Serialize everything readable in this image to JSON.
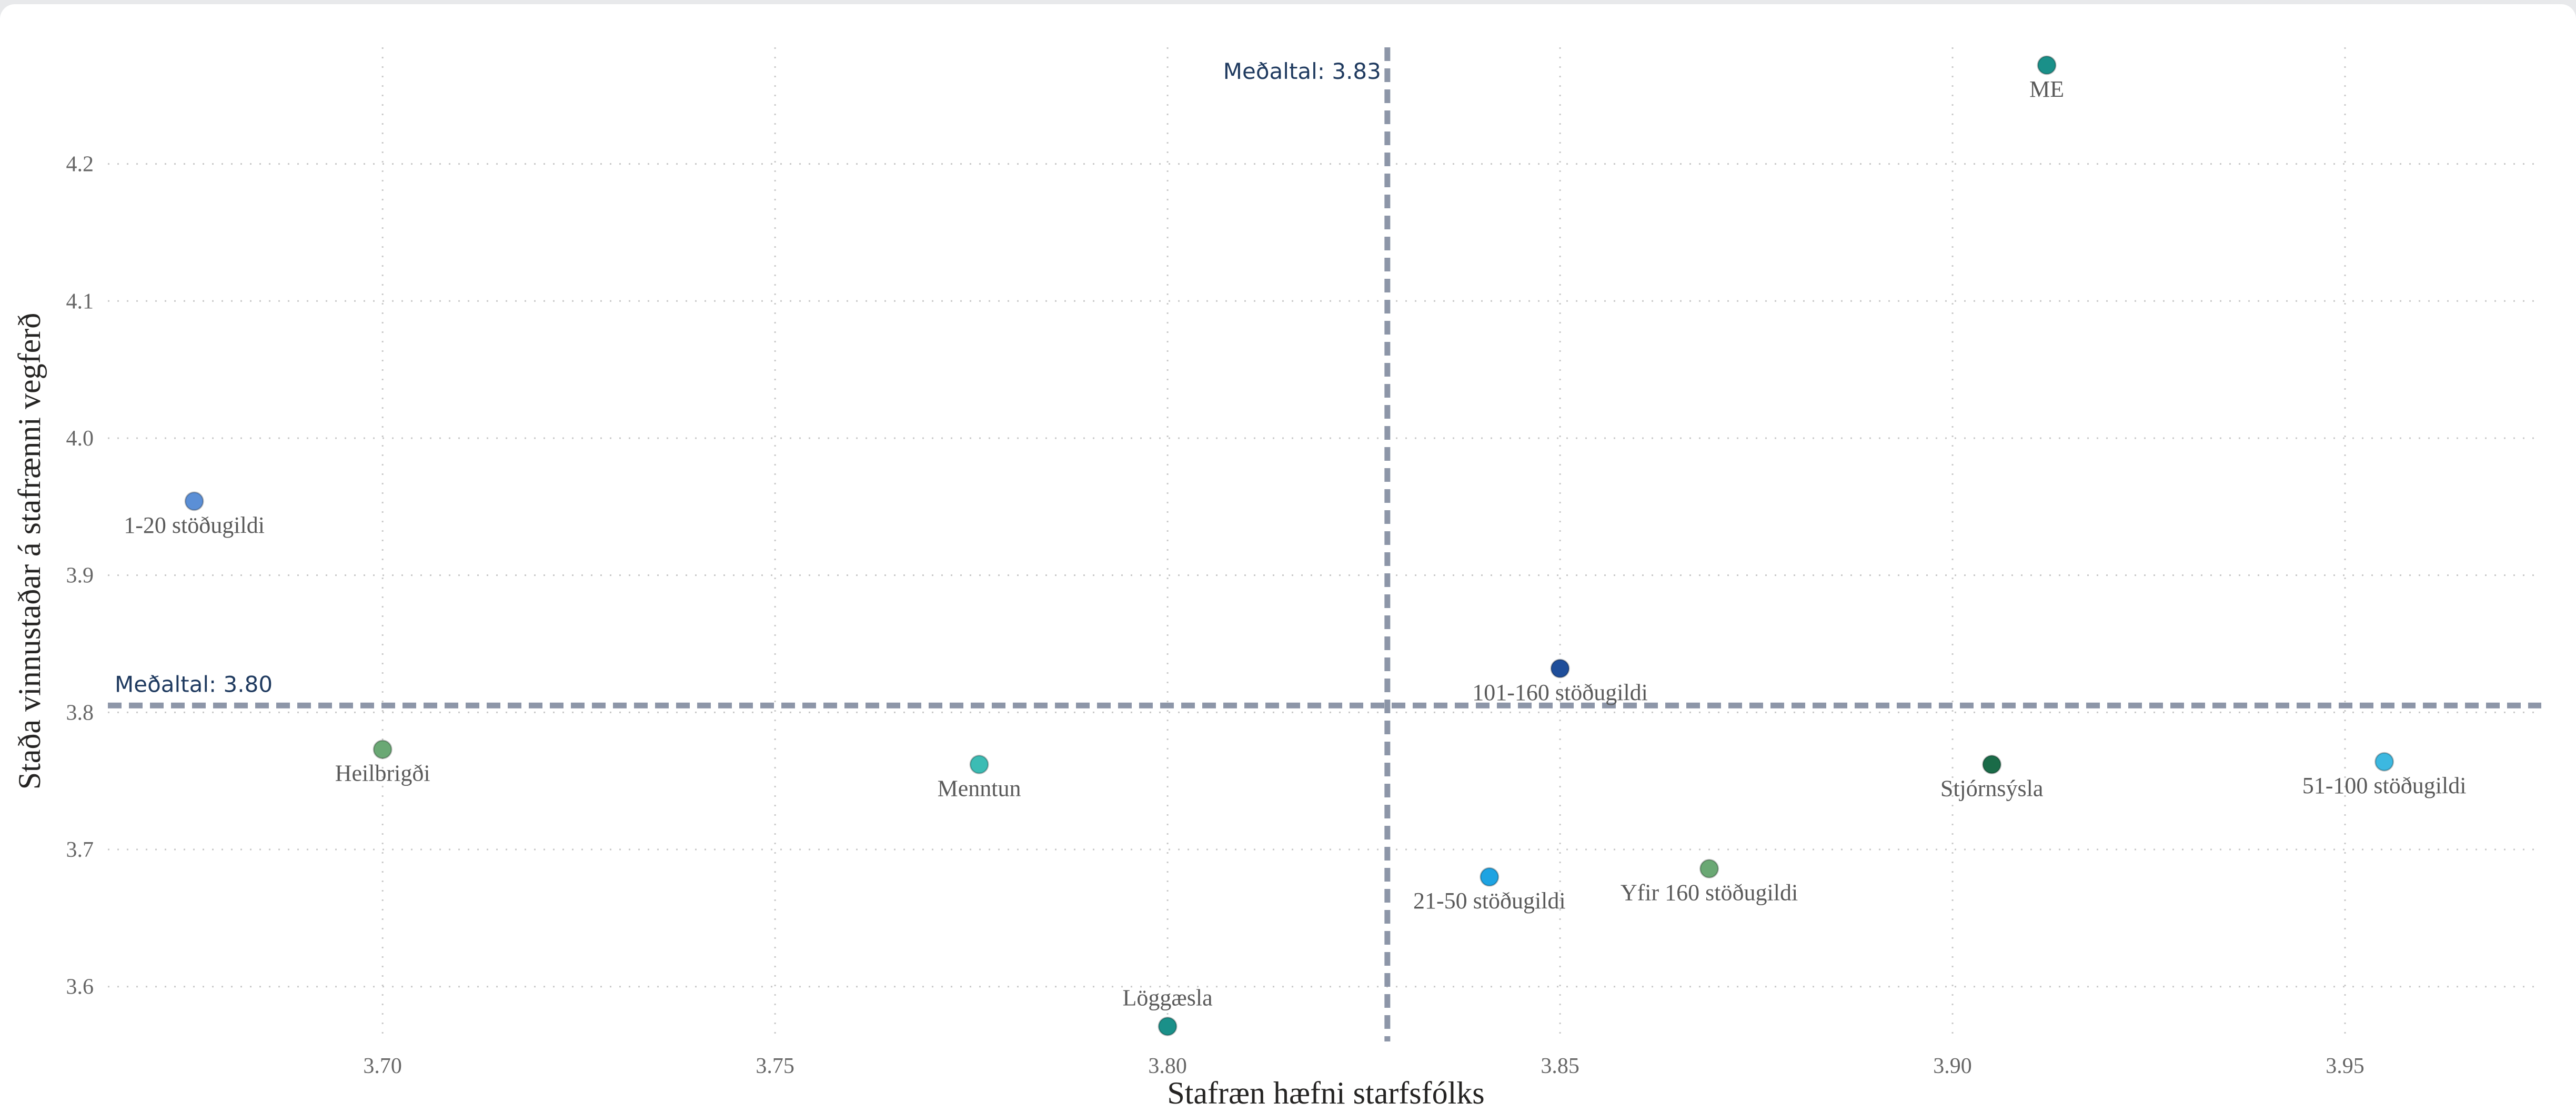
{
  "chart_data": {
    "type": "scatter",
    "xlabel": "Stafræn hæfni starfsfólks",
    "ylabel": "Staða vinnustaðar á stafrænni vegferð",
    "xlim": [
      3.665,
      3.975
    ],
    "ylim": [
      3.56,
      4.285
    ],
    "xticks": [
      3.7,
      3.75,
      3.8,
      3.85,
      3.9,
      3.95
    ],
    "yticks": [
      3.6,
      3.7,
      3.8,
      3.9,
      4.0,
      4.1,
      4.2
    ],
    "grid": true,
    "reference_lines": [
      {
        "axis": "x",
        "value": 3.828,
        "label": "Meðaltal: 3.83"
      },
      {
        "axis": "y",
        "value": 3.805,
        "label": "Meðaltal: 3.80"
      }
    ],
    "points": [
      {
        "label": "ME",
        "x": 3.912,
        "y": 4.272,
        "color": "#1a9089",
        "label_pos": "below"
      },
      {
        "label": "1-20 stöðugildi",
        "x": 3.676,
        "y": 3.954,
        "color": "#5b8fd6",
        "label_pos": "below"
      },
      {
        "label": "101-160 stöðugildi",
        "x": 3.85,
        "y": 3.832,
        "color": "#1f4e9a",
        "label_pos": "below"
      },
      {
        "label": "Heilbrigði",
        "x": 3.7,
        "y": 3.773,
        "color": "#6aa874",
        "label_pos": "below"
      },
      {
        "label": "Menntun",
        "x": 3.776,
        "y": 3.762,
        "color": "#3cbcb4",
        "label_pos": "below"
      },
      {
        "label": "Stjórnsýsla",
        "x": 3.905,
        "y": 3.762,
        "color": "#1a6b48",
        "label_pos": "below"
      },
      {
        "label": "51-100 stöðugildi",
        "x": 3.955,
        "y": 3.764,
        "color": "#3cb8e0",
        "label_pos": "below"
      },
      {
        "label": "21-50 stöðugildi",
        "x": 3.841,
        "y": 3.68,
        "color": "#1ea3e2",
        "label_pos": "below"
      },
      {
        "label": "Yfir 160 stöðugildi",
        "x": 3.869,
        "y": 3.686,
        "color": "#6aa874",
        "label_pos": "below"
      },
      {
        "label": "Löggæsla",
        "x": 3.8,
        "y": 3.571,
        "color": "#1a9089",
        "label_pos": "above"
      }
    ]
  }
}
